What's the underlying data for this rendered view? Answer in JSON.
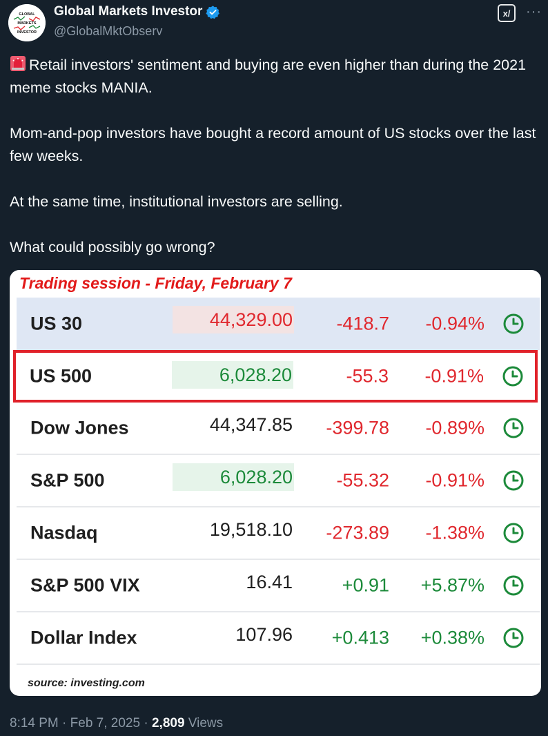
{
  "author": {
    "display_name": "Global Markets Investor",
    "handle": "@GlobalMktObserv",
    "avatar_text": [
      "GLOBAL",
      "MARKETS",
      "INVESTOR"
    ]
  },
  "post": {
    "paragraphs": [
      "Retail investors' sentiment and buying are even higher than during the 2021 meme stocks MANIA.",
      "Mom-and-pop investors have bought a record amount of US stocks over the last few weeks.",
      "At the same time, institutional investors are selling.",
      "What could possibly go wrong?"
    ],
    "emoji": "siren-icon"
  },
  "card": {
    "title": "Trading session - Friday, February 7",
    "source": "source: investing.com",
    "rows": [
      {
        "name": "US 30",
        "price": "44,329.00",
        "change": "-418.7",
        "pct": "-0.94%"
      },
      {
        "name": "US 500",
        "price": "6,028.20",
        "change": "-55.3",
        "pct": "-0.91%"
      },
      {
        "name": "Dow Jones",
        "price": "44,347.85",
        "change": "-399.78",
        "pct": "-0.89%"
      },
      {
        "name": "S&P 500",
        "price": "6,028.20",
        "change": "-55.32",
        "pct": "-0.91%"
      },
      {
        "name": "Nasdaq",
        "price": "19,518.10",
        "change": "-273.89",
        "pct": "-1.38%"
      },
      {
        "name": "S&P 500 VIX",
        "price": "16.41",
        "change": "+0.91",
        "pct": "+5.87%"
      },
      {
        "name": "Dollar Index",
        "price": "107.96",
        "change": "+0.413",
        "pct": "+0.38%"
      }
    ],
    "colors": {
      "negative": "#e0282e",
      "positive": "#1c8a3a",
      "highlight_border": "#e0212a"
    }
  },
  "footer": {
    "time": "8:14 PM",
    "date": "Feb 7, 2025",
    "views_count": "2,809",
    "views_label": "Views",
    "separator": "·"
  },
  "actions": {
    "grok_label": "x/",
    "more_label": "···"
  }
}
